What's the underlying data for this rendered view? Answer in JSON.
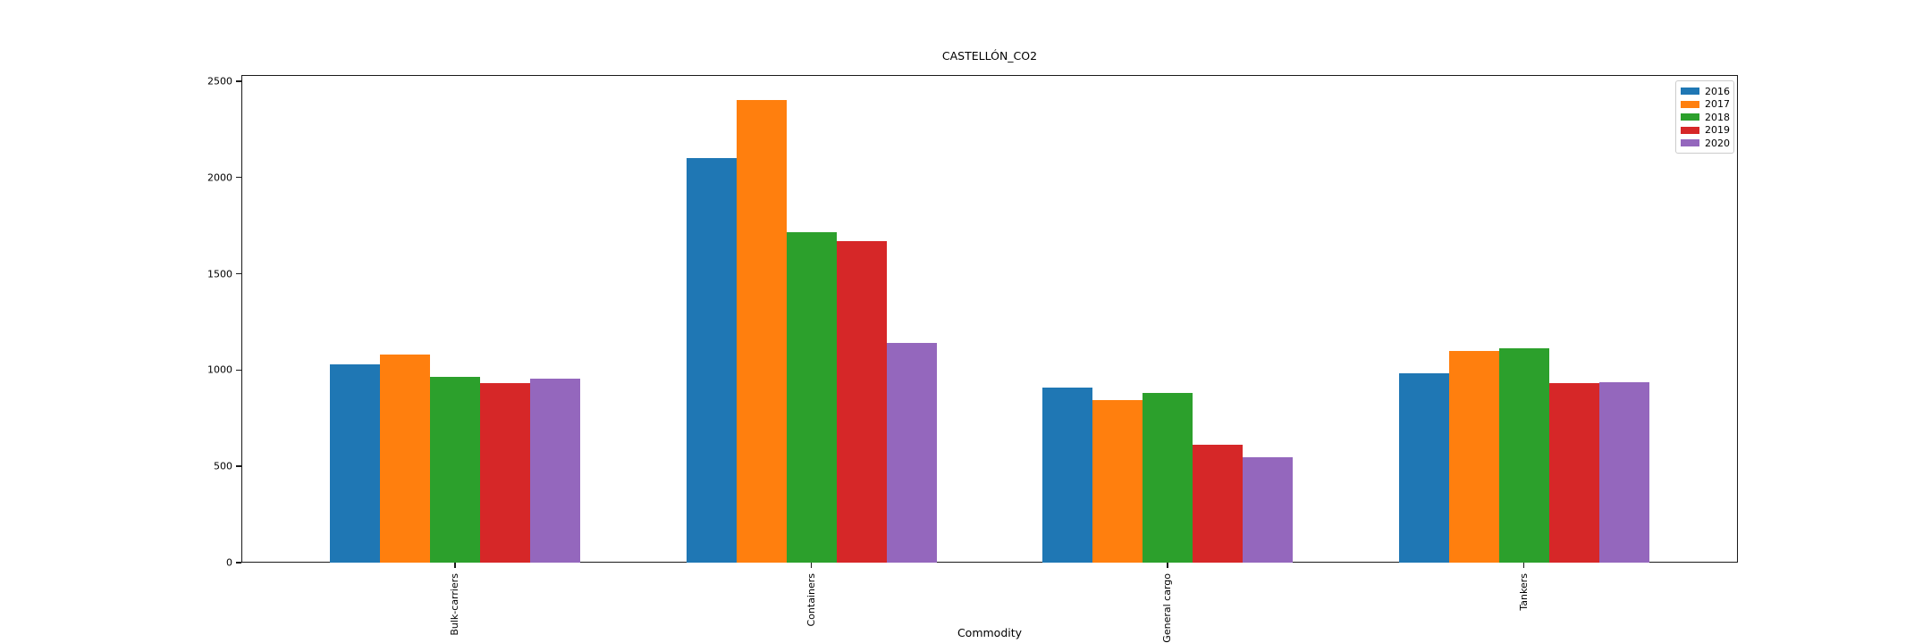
{
  "chart_data": {
    "type": "bar",
    "title": "CASTELLÓN_CO2",
    "xlabel": "Commodity",
    "ylabel": "",
    "categories": [
      "Bulk-carriers",
      "Containers",
      "General cargo",
      "Tankers"
    ],
    "series": [
      {
        "name": "2016",
        "color": "#1f77b4",
        "values": [
          1030,
          2100,
          910,
          985
        ]
      },
      {
        "name": "2017",
        "color": "#ff7f0e",
        "values": [
          1080,
          2400,
          845,
          1100
        ]
      },
      {
        "name": "2018",
        "color": "#2ca02c",
        "values": [
          965,
          1715,
          880,
          1115
        ]
      },
      {
        "name": "2019",
        "color": "#d62728",
        "values": [
          930,
          1670,
          610,
          930
        ]
      },
      {
        "name": "2020",
        "color": "#9467bd",
        "values": [
          955,
          1140,
          545,
          935
        ]
      }
    ],
    "y_ticks": [
      0,
      500,
      1000,
      1500,
      2000,
      2500
    ],
    "ylim": [
      0,
      2532
    ],
    "legend_position": "upper right",
    "grid": false,
    "frame_color": "#1a1a1a",
    "background_color": "#ffffff"
  }
}
